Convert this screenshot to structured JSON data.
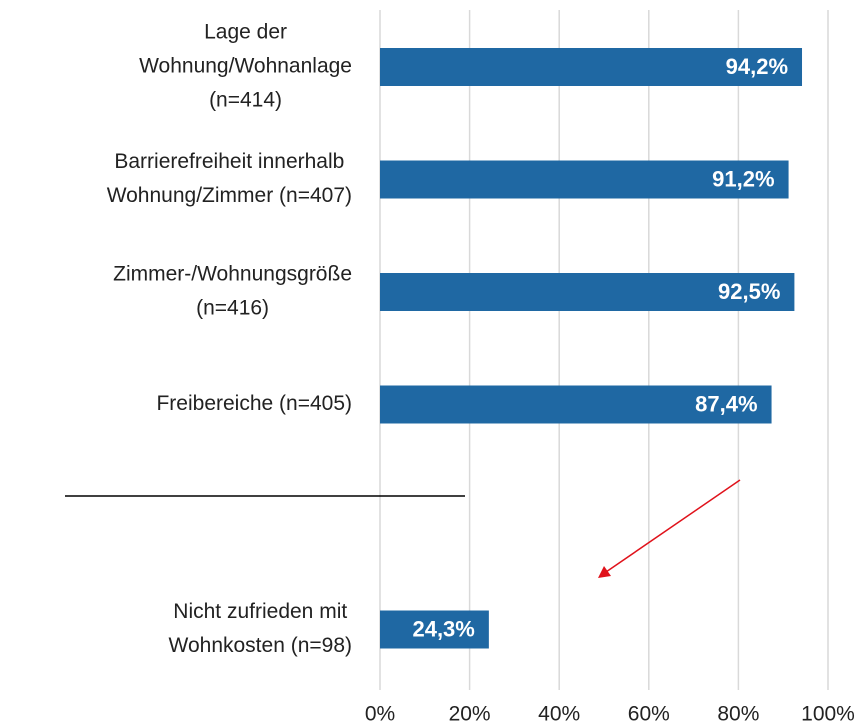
{
  "chart_data": {
    "type": "bar",
    "orientation": "horizontal",
    "categories": [
      [
        "Lage der",
        "Wohnung/Wohnanlage",
        "(n=414)"
      ],
      [
        "Barrierefreiheit innerhalb",
        "Wohnung/Zimmer (n=407)"
      ],
      [
        "Zimmer-/Wohnungsgröße",
        "(n=416)"
      ],
      [
        "Freibereiche (n=405)"
      ],
      null,
      [
        "Nicht zufrieden mit",
        "Wohnkosten (n=98)"
      ]
    ],
    "values": [
      94.2,
      91.2,
      92.5,
      87.4,
      null,
      24.3
    ],
    "value_labels": [
      "94,2%",
      "91,2%",
      "92,5%",
      "87,4%",
      null,
      "24,3%"
    ],
    "color": "#1f68a3",
    "xlim": [
      0,
      100
    ],
    "xticks": [
      {
        "value": 0,
        "label": "0%"
      },
      {
        "value": 20,
        "label": "20%"
      },
      {
        "value": 40,
        "label": "40%"
      },
      {
        "value": 60,
        "label": "60%"
      },
      {
        "value": 80,
        "label": "80%"
      },
      {
        "value": 100,
        "label": "100%"
      }
    ],
    "grid": true
  }
}
